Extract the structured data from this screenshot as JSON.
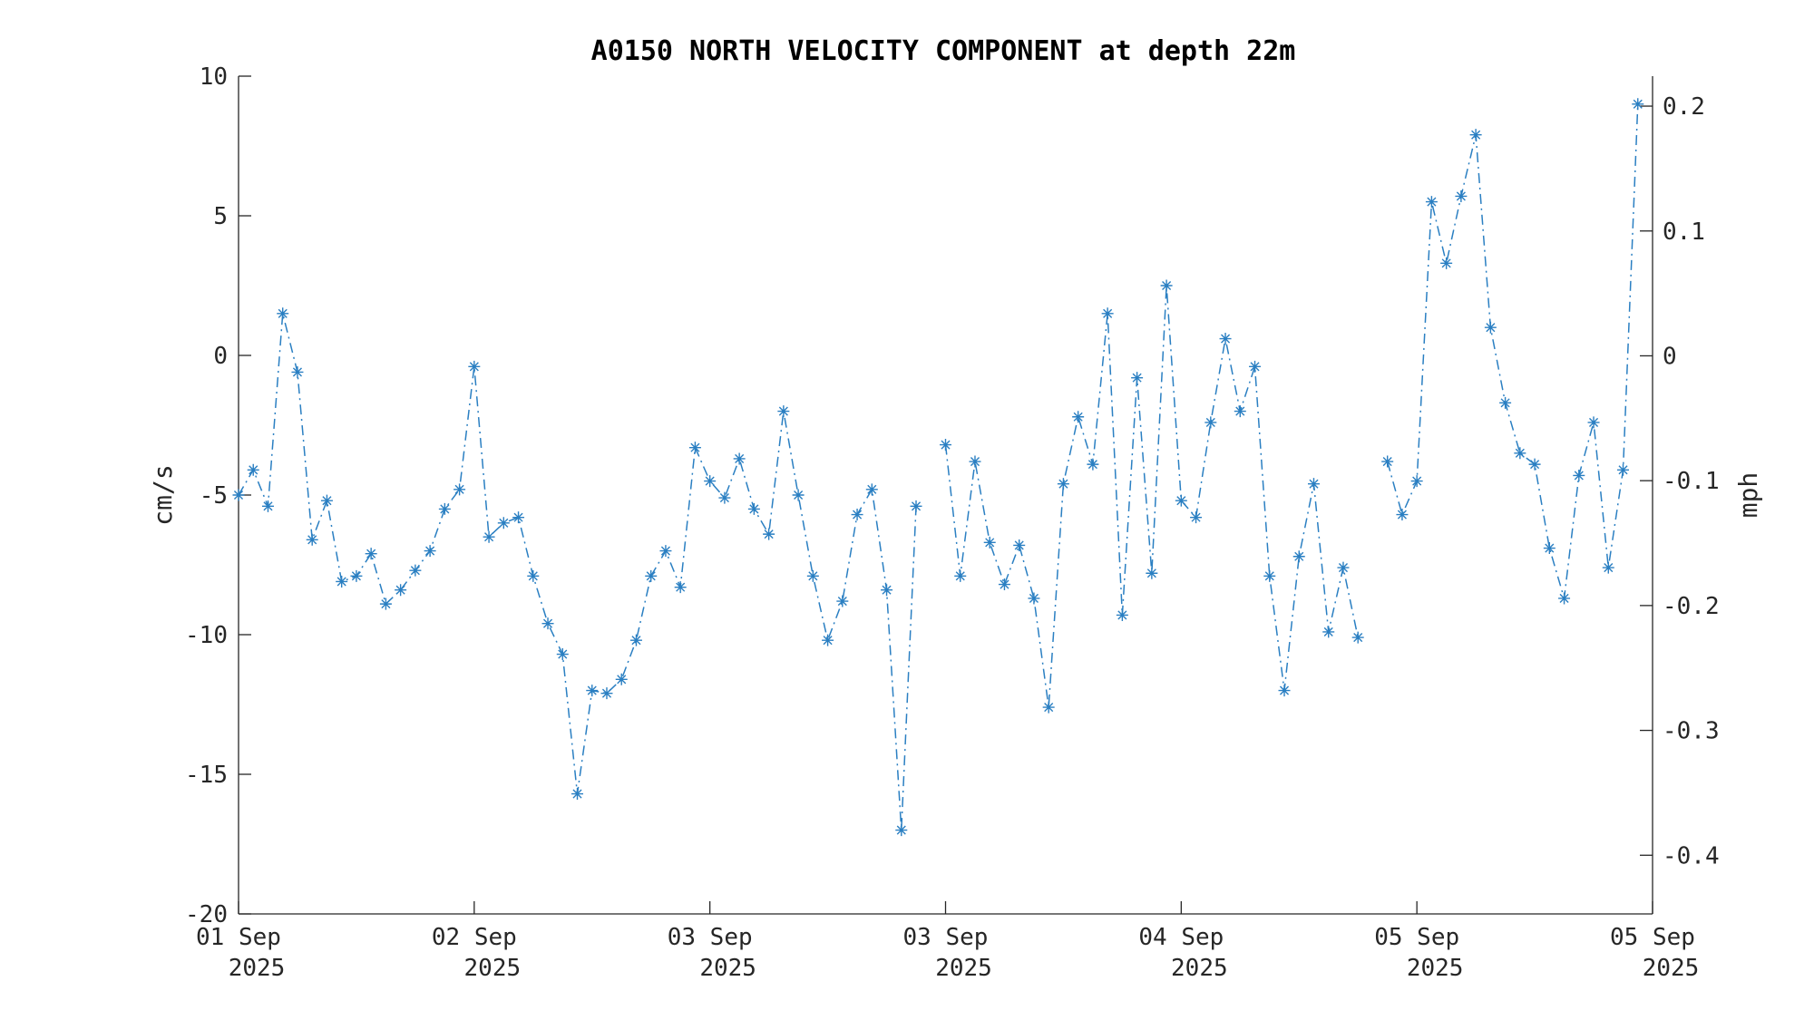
{
  "chart_data": {
    "type": "line",
    "title": "A0150 NORTH VELOCITY COMPONENT at depth 22m",
    "ylabel": "cm/s",
    "ylabel_right": "mph",
    "ylim": [
      -20,
      10
    ],
    "yticks": [
      "10",
      "5",
      "0",
      "-5",
      "-10",
      "-15",
      "-20"
    ],
    "yticks_values": [
      10,
      5,
      0,
      -5,
      -10,
      -15,
      -20
    ],
    "y2lim": [
      -0.447,
      0.224
    ],
    "y2ticks": [
      "0.2",
      "0.1",
      "0",
      "-0.1",
      "-0.2",
      "-0.3",
      "-0.4"
    ],
    "y2ticks_values": [
      0.2,
      0.1,
      0,
      -0.1,
      -0.2,
      -0.3,
      -0.4
    ],
    "xlim": [
      0,
      96
    ],
    "xticks": [
      {
        "x": 0,
        "day": "01 Sep",
        "year": "2025"
      },
      {
        "x": 16,
        "day": "02 Sep",
        "year": "2025"
      },
      {
        "x": 32,
        "day": "03 Sep",
        "year": "2025"
      },
      {
        "x": 48,
        "day": "03 Sep",
        "year": "2025"
      },
      {
        "x": 64,
        "day": "04 Sep",
        "year": "2025"
      },
      {
        "x": 80,
        "day": "05 Sep",
        "year": "2025"
      },
      {
        "x": 96,
        "day": "05 Sep",
        "year": "2025"
      }
    ],
    "grid": false,
    "series": [
      {
        "color": "#2a7fc2",
        "line_style": "dash-dot",
        "marker": "asterisk",
        "x": [
          0,
          1,
          2,
          3,
          4,
          5,
          6,
          7,
          8,
          9,
          10,
          11,
          12,
          13,
          14,
          15,
          16,
          17,
          18,
          19,
          20,
          21,
          22,
          23,
          24,
          25,
          26,
          27,
          28,
          29,
          30,
          31,
          32,
          33,
          34,
          35,
          36,
          37,
          38,
          39,
          40,
          41,
          42,
          43,
          44,
          45,
          46,
          47,
          48,
          49,
          50,
          51,
          52,
          53,
          54,
          55,
          56,
          57,
          58,
          59,
          60,
          61,
          62,
          63,
          64,
          65,
          66,
          67,
          68,
          69,
          70,
          71,
          72,
          73,
          74,
          75,
          76,
          77,
          78,
          79,
          80,
          81,
          82,
          83,
          84,
          85,
          86,
          87,
          88,
          89,
          90,
          91,
          92,
          93,
          94,
          95,
          96
        ],
        "values": [
          -5.0,
          -4.1,
          -5.4,
          1.5,
          -0.6,
          -6.6,
          -5.2,
          -8.1,
          -7.9,
          -7.1,
          -8.9,
          -8.4,
          -7.7,
          -7.0,
          -5.5,
          -4.8,
          -0.4,
          -6.5,
          -6.0,
          -5.8,
          -7.9,
          -9.6,
          -10.7,
          -15.7,
          -12.0,
          -12.1,
          -11.6,
          -10.2,
          -7.9,
          -7.0,
          -8.3,
          -3.3,
          -4.5,
          -5.1,
          -3.7,
          -5.5,
          -6.4,
          -2.0,
          -5.0,
          -7.9,
          -10.2,
          -8.8,
          -5.7,
          -4.8,
          -8.4,
          -17.0,
          -5.4,
          null,
          -3.2,
          -7.9,
          -3.8,
          -6.7,
          -8.2,
          -6.8,
          -8.7,
          -12.6,
          -4.6,
          -2.2,
          -3.9,
          1.5,
          -9.3,
          -0.8,
          -7.8,
          2.5,
          -5.2,
          -5.8,
          -2.4,
          0.6,
          -2.0,
          -0.4,
          -7.9,
          -12.0,
          -7.2,
          -4.6,
          -9.9,
          -7.6,
          -10.1,
          null,
          -3.8,
          -5.7,
          -4.5,
          5.5,
          3.3,
          5.7,
          7.9,
          1.0,
          -1.7,
          -3.5,
          -3.9,
          -6.9,
          -8.7,
          -4.3,
          -2.4,
          -7.6,
          -4.1,
          9.0,
          null
        ]
      }
    ]
  }
}
